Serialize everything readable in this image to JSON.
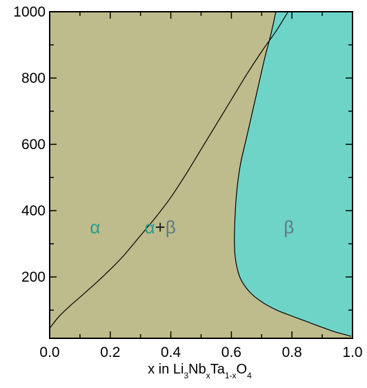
{
  "chart_data": {
    "type": "area",
    "title": "",
    "xlabel": {
      "parts": [
        {
          "text": "x in Li",
          "sub": false
        },
        {
          "text": "3",
          "sub": true
        },
        {
          "text": "Nb",
          "sub": false
        },
        {
          "text": "x",
          "sub": true
        },
        {
          "text": "Ta",
          "sub": false
        },
        {
          "text": "1-x",
          "sub": true
        },
        {
          "text": "O",
          "sub": false
        },
        {
          "text": "4",
          "sub": true
        }
      ]
    },
    "ylabel": "",
    "xlim": [
      0.0,
      1.0
    ],
    "ylim": [
      15,
      1000
    ],
    "x_tick_labels": [
      "0.0",
      "0.2",
      "0.4",
      "0.6",
      "0.8",
      "1.0"
    ],
    "x_ticks": [
      0.0,
      0.2,
      0.4,
      0.6,
      0.8,
      1.0
    ],
    "y_tick_labels": [
      "200",
      "400",
      "600",
      "800",
      "1000"
    ],
    "y_ticks": [
      200,
      400,
      600,
      800,
      1000
    ],
    "grid": false,
    "colors": {
      "alpha": "#FFCF4E",
      "alpha_beta": "#BEBB8C",
      "beta": "#6ED4C8",
      "alpha_text": "#2A9C8E",
      "beta_text": "#5B7B80",
      "plus_text": "#1a1a1a"
    },
    "regions": [
      {
        "name": "alpha",
        "label": "α"
      },
      {
        "name": "alpha_beta",
        "label_alpha": "α",
        "label_plus": "+",
        "label_beta": "β"
      },
      {
        "name": "beta",
        "label": "β"
      }
    ],
    "boundaries": {
      "alpha_solvus": [
        [
          0.0,
          45
        ],
        [
          0.03,
          80
        ],
        [
          0.07,
          115
        ],
        [
          0.12,
          155
        ],
        [
          0.18,
          205
        ],
        [
          0.24,
          260
        ],
        [
          0.3,
          325
        ],
        [
          0.35,
          380
        ],
        [
          0.4,
          440
        ],
        [
          0.45,
          510
        ],
        [
          0.5,
          585
        ],
        [
          0.55,
          660
        ],
        [
          0.6,
          735
        ],
        [
          0.65,
          810
        ],
        [
          0.7,
          880
        ],
        [
          0.75,
          945
        ],
        [
          0.787,
          1000
        ]
      ],
      "beta_solvus": [
        [
          0.98,
          25
        ],
        [
          0.94,
          35
        ],
        [
          0.9,
          48
        ],
        [
          0.85,
          65
        ],
        [
          0.8,
          82
        ],
        [
          0.75,
          100
        ],
        [
          0.7,
          125
        ],
        [
          0.66,
          155
        ],
        [
          0.63,
          195
        ],
        [
          0.615,
          245
        ],
        [
          0.61,
          300
        ],
        [
          0.612,
          380
        ],
        [
          0.618,
          460
        ],
        [
          0.63,
          540
        ],
        [
          0.65,
          620
        ],
        [
          0.67,
          700
        ],
        [
          0.69,
          780
        ],
        [
          0.71,
          860
        ],
        [
          0.73,
          930
        ],
        [
          0.747,
          1000
        ]
      ]
    }
  }
}
